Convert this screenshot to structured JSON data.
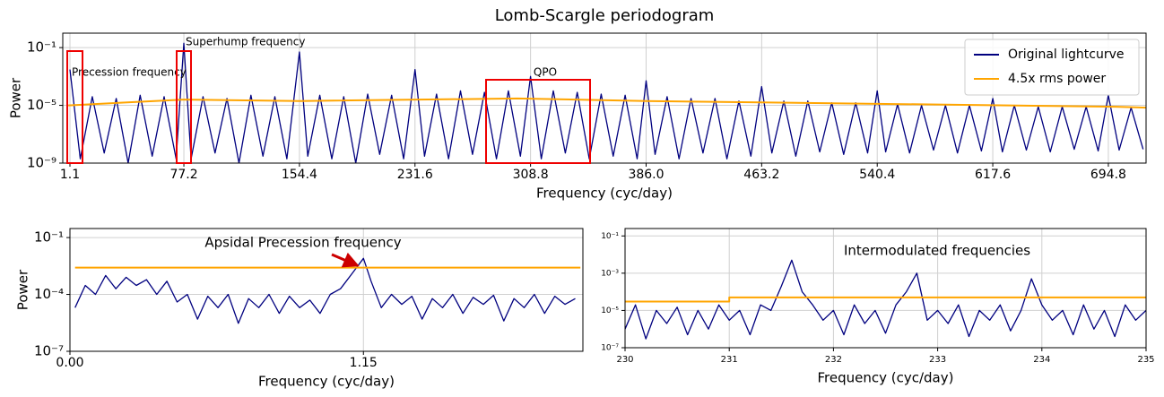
{
  "chart_data": [
    {
      "type": "line",
      "title": "Lomb-Scargle periodogram",
      "xlabel": "Frequency (cyc/day)",
      "ylabel": "Power",
      "log_y": true,
      "grid": true,
      "legend": "upper right",
      "xlim": [
        -3.7,
        720
      ],
      "ylim": [
        1e-09,
        1
      ],
      "xticks": [
        1.1,
        77.2,
        154.4,
        231.6,
        308.8,
        {
          "value": 386,
          "label": "386.0"
        },
        463.2,
        540.4,
        617.6,
        694.8
      ],
      "yticks": [
        {
          "value": 0.1,
          "label": "10⁻¹"
        },
        {
          "value": 1e-05,
          "label": "10⁻⁵"
        },
        {
          "value": 1e-09,
          "label": "10⁻⁹"
        }
      ],
      "annotations": [
        "Superhump frequency",
        "Precession frequency",
        "QPO"
      ],
      "series": [
        {
          "name": "Original lightcurve",
          "color": "#00007f",
          "x": [
            1.1,
            8,
            16,
            24,
            32,
            40,
            48,
            56,
            64,
            72,
            77.2,
            82,
            90,
            98,
            106,
            114,
            122,
            130,
            138,
            146,
            154.4,
            160,
            168,
            176,
            184,
            192,
            200,
            208,
            216,
            224,
            231.6,
            238,
            246,
            254,
            262,
            270,
            278,
            286,
            294,
            302,
            308.8,
            316,
            324,
            332,
            340,
            348,
            356,
            364,
            372,
            380,
            386,
            392,
            400,
            408,
            416,
            424,
            432,
            440,
            448,
            456,
            463.2,
            470,
            478,
            486,
            494,
            502,
            510,
            518,
            526,
            534,
            540.4,
            546,
            554,
            562,
            570,
            578,
            586,
            594,
            602,
            610,
            617.6,
            624,
            632,
            640,
            648,
            656,
            664,
            672,
            680,
            688,
            694.8,
            702,
            710,
            718
          ],
          "values": [
            0.003,
            2e-09,
            4e-05,
            5e-09,
            3e-05,
            1e-09,
            5e-05,
            3e-09,
            4e-05,
            2e-09,
            0.2,
            2e-09,
            4e-05,
            5e-09,
            3e-05,
            1e-09,
            5e-05,
            3e-09,
            4e-05,
            2e-09,
            0.05,
            3e-09,
            5e-05,
            2e-09,
            4e-05,
            1e-09,
            6e-05,
            4e-09,
            5e-05,
            2e-09,
            0.003,
            3e-09,
            6e-05,
            2e-09,
            0.0001,
            4e-09,
            8e-05,
            2e-09,
            0.0001,
            3e-09,
            0.001,
            2e-09,
            0.0001,
            5e-09,
            8e-05,
            2e-09,
            6e-05,
            3e-09,
            5e-05,
            2e-09,
            0.0005,
            4e-09,
            4e-05,
            2e-09,
            3e-05,
            5e-09,
            3e-05,
            2e-09,
            2e-05,
            3e-09,
            0.0002,
            5e-09,
            2e-05,
            3e-09,
            2e-05,
            6e-09,
            1.5e-05,
            4e-09,
            1.5e-05,
            5e-09,
            0.0001,
            6e-09,
            1.2e-05,
            5e-09,
            1e-05,
            8e-09,
            1e-05,
            5e-09,
            1e-05,
            7e-09,
            3e-05,
            6e-09,
            1e-05,
            8e-09,
            8e-06,
            6e-09,
            8e-06,
            9e-09,
            8e-06,
            7e-09,
            5e-05,
            8e-09,
            7e-06,
            9e-09
          ]
        },
        {
          "name": "4.5x rms power",
          "color": "#ffa500",
          "x": [
            0,
            77.2,
            154.4,
            300,
            386,
            700,
            720
          ],
          "values": [
            1e-05,
            2.5e-05,
            2e-05,
            3e-05,
            2e-05,
            8e-06,
            7e-06
          ]
        }
      ]
    },
    {
      "type": "line",
      "xlabel": "Frequency (cyc/day)",
      "ylabel": "Power",
      "log_y": true,
      "grid": true,
      "xlim": [
        0,
        2.01
      ],
      "ylim": [
        1e-07,
        0.3
      ],
      "xticks": [
        {
          "value": 0,
          "label": "0.00"
        },
        1.15
      ],
      "yticks": [
        {
          "value": 0.1,
          "label": "10⁻¹"
        },
        {
          "value": 0.0001,
          "label": "10⁻⁴"
        },
        {
          "value": 1e-07,
          "label": "10⁻⁷"
        }
      ],
      "annotations": [
        "Apsidal Precession frequency"
      ],
      "series": [
        {
          "color": "#00007f",
          "x": [
            0.02,
            0.06,
            0.1,
            0.14,
            0.18,
            0.22,
            0.26,
            0.3,
            0.34,
            0.38,
            0.42,
            0.46,
            0.5,
            0.54,
            0.58,
            0.62,
            0.66,
            0.7,
            0.74,
            0.78,
            0.82,
            0.86,
            0.9,
            0.94,
            0.98,
            1.02,
            1.06,
            1.1,
            1.15,
            1.18,
            1.22,
            1.26,
            1.3,
            1.34,
            1.38,
            1.42,
            1.46,
            1.5,
            1.54,
            1.58,
            1.62,
            1.66,
            1.7,
            1.74,
            1.78,
            1.82,
            1.86,
            1.9,
            1.94,
            1.98
          ],
          "values": [
            2e-05,
            0.0003,
            0.0001,
            0.001,
            0.0002,
            0.0008,
            0.0003,
            0.0006,
            0.0001,
            0.0005,
            4e-05,
            0.0001,
            5e-06,
            8e-05,
            2e-05,
            0.0001,
            3e-06,
            6e-05,
            2e-05,
            0.0001,
            1e-05,
            8e-05,
            2e-05,
            5e-05,
            1e-05,
            0.0001,
            0.0002,
            0.001,
            0.008,
            0.0005,
            2e-05,
            0.0001,
            3e-05,
            8e-05,
            5e-06,
            6e-05,
            2e-05,
            0.0001,
            1e-05,
            7e-05,
            3e-05,
            9e-05,
            4e-06,
            6e-05,
            2e-05,
            0.0001,
            1e-05,
            8e-05,
            3e-05,
            6e-05
          ]
        },
        {
          "color": "#ffa500",
          "x": [
            0.02,
            2.0
          ],
          "values": [
            0.0026,
            0.0026
          ]
        }
      ]
    },
    {
      "type": "line",
      "xlabel": "Frequency (cyc/day)",
      "log_y": true,
      "grid": true,
      "xlim": [
        230,
        235
      ],
      "ylim": [
        1e-07,
        0.25
      ],
      "xticks": [
        230,
        231,
        232,
        233,
        234,
        235
      ],
      "yticks": [
        {
          "value": 0.1,
          "label": "10⁻¹"
        },
        {
          "value": 0.001,
          "label": "10⁻³"
        },
        {
          "value": 1e-05,
          "label": "10⁻⁵"
        },
        {
          "value": 1e-07,
          "label": "10⁻⁷"
        }
      ],
      "annotations": [
        "Intermodulated frequencies"
      ],
      "series": [
        {
          "color": "#00007f",
          "x": [
            230,
            230.1,
            230.2,
            230.3,
            230.4,
            230.5,
            230.6,
            230.7,
            230.8,
            230.9,
            231,
            231.1,
            231.2,
            231.3,
            231.4,
            231.5,
            231.6,
            231.7,
            231.8,
            231.9,
            232,
            232.1,
            232.2,
            232.3,
            232.4,
            232.5,
            232.6,
            232.7,
            232.8,
            232.9,
            233,
            233.1,
            233.2,
            233.3,
            233.4,
            233.5,
            233.6,
            233.7,
            233.8,
            233.9,
            234,
            234.1,
            234.2,
            234.3,
            234.4,
            234.5,
            234.6,
            234.7,
            234.8,
            234.9,
            235
          ],
          "values": [
            1e-06,
            2e-05,
            3e-07,
            1e-05,
            2e-06,
            1.5e-05,
            5e-07,
            1e-05,
            1e-06,
            2e-05,
            3e-06,
            1e-05,
            5e-07,
            2e-05,
            1e-05,
            0.0002,
            0.005,
            0.0001,
            2e-05,
            3e-06,
            1e-05,
            5e-07,
            2e-05,
            2e-06,
            1e-05,
            6e-07,
            2e-05,
            0.0001,
            0.001,
            3e-06,
            1e-05,
            2e-06,
            2e-05,
            4e-07,
            1e-05,
            3e-06,
            2e-05,
            8e-07,
            1e-05,
            0.0005,
            2e-05,
            3e-06,
            1e-05,
            5e-07,
            2e-05,
            1e-06,
            1e-05,
            4e-07,
            2e-05,
            3e-06,
            1e-05
          ]
        },
        {
          "color": "#ffa500",
          "x": [
            230,
            231,
            231,
            235
          ],
          "values": [
            3e-05,
            3e-05,
            5e-05,
            5e-05
          ]
        }
      ]
    }
  ]
}
